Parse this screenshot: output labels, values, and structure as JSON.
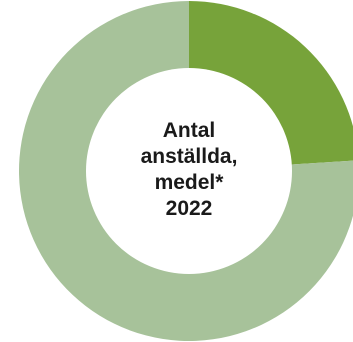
{
  "chart_data": {
    "type": "pie",
    "variant": "donut",
    "center_text": [
      "Antal",
      "anställda,",
      "medel*",
      "2022"
    ],
    "slices": [
      {
        "value": 24,
        "color": "#77a33a"
      },
      {
        "value": 76,
        "color": "#a7c29a"
      }
    ],
    "legend": "none",
    "grid": false
  }
}
